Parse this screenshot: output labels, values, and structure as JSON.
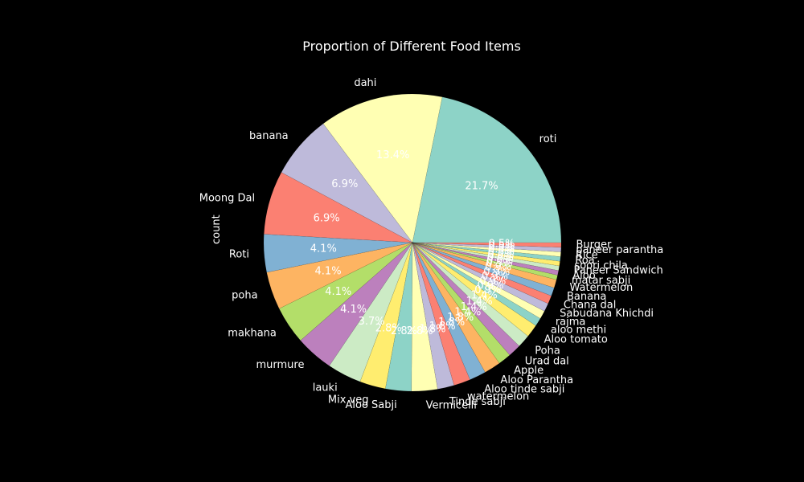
{
  "background": "#000000",
  "chart_data": {
    "type": "pie",
    "title": "Proportion of Different Food Items",
    "ylabel": "count",
    "start_angle_deg": 0,
    "direction": "counterclockwise",
    "categories": [
      "roti",
      "dahi",
      "banana",
      "Moong Dal",
      "Roti",
      "poha",
      "makhana",
      "murmure",
      "lauki",
      "Mix veg",
      "Aloo Sabji",
      "Vermicelli",
      "Tinde sabji",
      "watermelon",
      "Aloo tinde sabji",
      "Aloo Parantha",
      "Apple",
      "Urad dal",
      "Poha",
      "Aloo tomato",
      "aloo methi",
      "rajma",
      "Sabudana Khichdi",
      "Chana dal",
      "Banana",
      "Watermelon",
      "matar sabji",
      "Aloo",
      "Paneer Sandwich",
      "soori chila",
      "Roa",
      "Rice",
      "paneer parantha",
      "Burger"
    ],
    "values": [
      21.7,
      13.4,
      6.9,
      6.9,
      4.1,
      4.1,
      4.1,
      4.1,
      3.7,
      2.8,
      2.8,
      2.8,
      1.8,
      1.8,
      1.8,
      1.8,
      1.4,
      1.4,
      1.4,
      1.4,
      0.9,
      0.9,
      0.9,
      0.9,
      0.9,
      0.9,
      0.5,
      0.5,
      0.5,
      0.5,
      0.5,
      0.5,
      0.5,
      0.5
    ],
    "percent_labels": [
      "21.7%",
      "13.4%",
      "6.9%",
      "6.9%",
      "4.1%",
      "4.1%",
      "4.1%",
      "4.1%",
      "3.7%",
      "2.8%",
      "2.8%",
      "2.8%",
      "1.8%",
      "1.8%",
      "1.8%",
      "1.8%",
      "1.4%",
      "1.4%",
      "1.4%",
      "1.4%",
      "0.9%",
      "0.9%",
      "0.9%",
      "0.9%",
      "0.9%",
      "0.9%",
      "0.5%",
      "0.5%",
      "0.5%",
      "0.5%",
      "0.5%",
      "0.5%",
      "0.5%",
      "0.5%"
    ],
    "colors": [
      "#8dd3c7",
      "#ffffb3",
      "#bebada",
      "#fb8072",
      "#80b1d3",
      "#fdb462",
      "#b3de69",
      "#bc80bd",
      "#ccebc5",
      "#ffed6f",
      "#8dd3c7",
      "#ffffb3",
      "#bebada",
      "#fb8072",
      "#80b1d3",
      "#fdb462",
      "#b3de69",
      "#bc80bd",
      "#ccebc5",
      "#ffed6f",
      "#8dd3c7",
      "#ffffb3",
      "#bebada",
      "#fb8072",
      "#80b1d3",
      "#fdb462",
      "#b3de69",
      "#bc80bd",
      "#ccebc5",
      "#ffed6f",
      "#8dd3c7",
      "#ffffb3",
      "#bebada",
      "#fb8072"
    ]
  }
}
